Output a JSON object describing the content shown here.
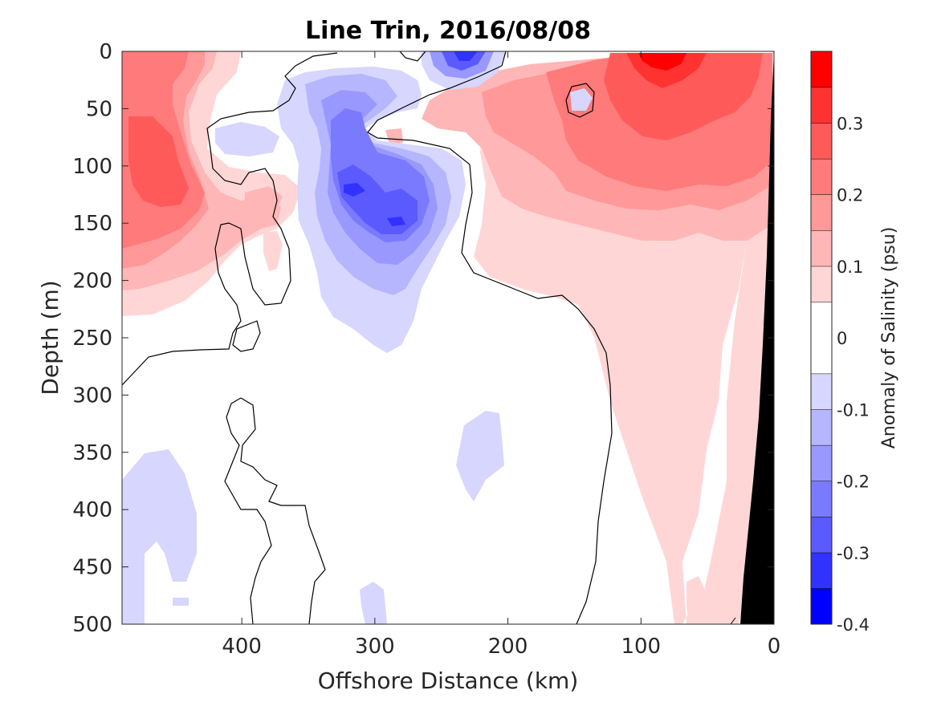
{
  "chart_data": {
    "type": "heatmap",
    "title": "Line Trin, 2016/08/08",
    "xlabel": "Offshore Distance (km)",
    "ylabel": "Depth (m)",
    "xlim": [
      490,
      0
    ],
    "ylim": [
      0,
      500
    ],
    "x_ticks": [
      400,
      300,
      200,
      100,
      0
    ],
    "x_tick_labels": [
      "400",
      "300",
      "200",
      "100",
      "0"
    ],
    "y_ticks": [
      0,
      50,
      100,
      150,
      200,
      250,
      300,
      350,
      400,
      450,
      500
    ],
    "y_tick_labels": [
      "0",
      "50",
      "100",
      "150",
      "200",
      "250",
      "300",
      "350",
      "400",
      "450",
      "500"
    ],
    "colorbar": {
      "label": "Anomaly of Salinity (psu)",
      "range": [
        -0.4,
        0.4
      ],
      "levels": [
        -0.4,
        -0.35,
        -0.3,
        -0.25,
        -0.2,
        -0.15,
        -0.1,
        -0.05,
        0.05,
        0.1,
        0.15,
        0.2,
        0.25,
        0.3,
        0.35,
        0.4
      ],
      "colors": [
        "#0000ff",
        "#3232ff",
        "#5a5aff",
        "#7a7aff",
        "#9898ff",
        "#b6b6ff",
        "#d6d6ff",
        "#ffffff",
        "#ffd6d6",
        "#ffb6b6",
        "#ff9898",
        "#ff7a7a",
        "#ff5a5a",
        "#ff3232",
        "#ff0000"
      ],
      "ticks": [
        0.3,
        0.2,
        0.1,
        0,
        -0.1,
        -0.2,
        -0.3,
        -0.4
      ],
      "tick_labels": [
        "0.3",
        "0.2",
        "0.1",
        "0",
        "-0.1",
        "-0.2",
        "-0.3",
        "-0.4"
      ]
    },
    "features": [
      {
        "name": "salty surface core nearshore",
        "x_km": 90,
        "depth_m": 20,
        "anomaly": 0.35
      },
      {
        "name": "salty core offshore",
        "x_km": 460,
        "depth_m": 100,
        "anomaly": 0.25
      },
      {
        "name": "fresh core subsurface",
        "x_km": 315,
        "depth_m": 120,
        "anomaly": -0.3
      },
      {
        "name": "fresh core subsurface",
        "x_km": 285,
        "depth_m": 148,
        "anomaly": -0.3
      },
      {
        "name": "fresh core surface",
        "x_km": 235,
        "depth_m": 5,
        "anomaly": -0.3
      },
      {
        "name": "fresh patch deep",
        "x_km": 210,
        "depth_m": 350,
        "anomaly": -0.1
      },
      {
        "name": "fresh patch deep offshore",
        "x_km": 460,
        "depth_m": 420,
        "anomaly": -0.1
      }
    ],
    "bathymetry_color": "#000000",
    "grid": false
  }
}
